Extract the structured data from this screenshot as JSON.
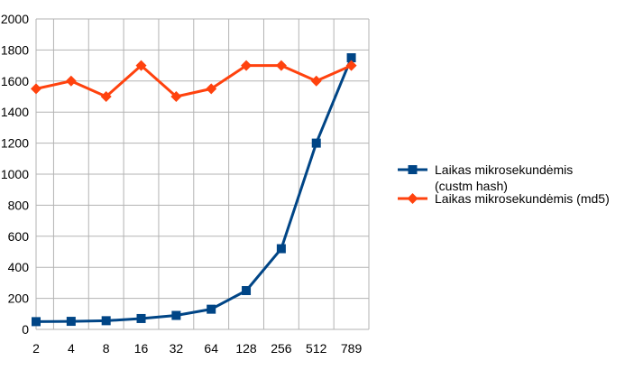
{
  "chart_data": {
    "type": "line",
    "categories": [
      "2",
      "4",
      "8",
      "16",
      "32",
      "64",
      "128",
      "256",
      "512",
      "789"
    ],
    "ylim": [
      0,
      2000
    ],
    "yticks": [
      0,
      200,
      400,
      600,
      800,
      1000,
      1200,
      1400,
      1600,
      1800,
      2000
    ],
    "grid": true,
    "legend_position": "right",
    "series": [
      {
        "name_lines": [
          "Laikas mikrosekundėmis",
          "(custm hash)"
        ],
        "color": "#004586",
        "marker": "square",
        "values": [
          50,
          52,
          56,
          70,
          90,
          130,
          250,
          520,
          1200,
          1750
        ]
      },
      {
        "name_lines": [
          "Laikas mikrosekundėmis (md5)"
        ],
        "color": "#ff420e",
        "marker": "diamond",
        "values": [
          1550,
          1600,
          1500,
          1700,
          1500,
          1550,
          1700,
          1700,
          1600,
          1700
        ]
      }
    ]
  }
}
